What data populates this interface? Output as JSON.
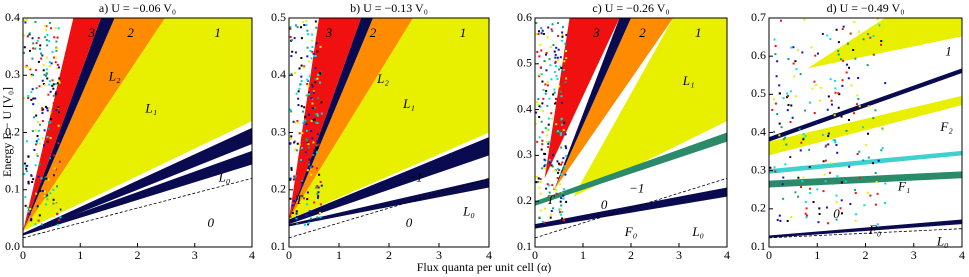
{
  "x_label": "Flux quanta per unit cell (α)",
  "y_label": "Energy E − U [V₀]",
  "chart_data": [
    {
      "type": "spectrum",
      "title": "a) U = −0.06 V₀",
      "xlim": [
        0,
        4
      ],
      "xticks": [
        0,
        1,
        2,
        3,
        4
      ],
      "ylim": [
        0,
        0.4
      ],
      "yticks": [
        {
          "value": 0,
          "label": "0.0"
        },
        0.1,
        0.2,
        0.3,
        0.4
      ],
      "annotations": [
        "3",
        "2",
        "1",
        "L₂",
        "L₁",
        "L₀",
        "0"
      ]
    },
    {
      "type": "spectrum",
      "title": "b) U = −0.13 V₀",
      "xlim": [
        0,
        4
      ],
      "xticks": [
        0,
        1,
        2,
        3,
        4
      ],
      "ylim": [
        0.1,
        0.5
      ],
      "yticks": [
        0.1,
        0.2,
        0.3,
        0.4,
        0.5
      ],
      "annotations": [
        "3",
        "2",
        "1",
        "L₂",
        "L₁",
        "−1",
        "T",
        "0",
        "L₀"
      ]
    },
    {
      "type": "spectrum",
      "title": "c) U = −0.26 V₀",
      "xlim": [
        0,
        4
      ],
      "xticks": [
        0,
        1,
        2,
        3,
        4
      ],
      "ylim": [
        0.1,
        0.6
      ],
      "yticks": [
        0.1,
        0.2,
        0.3,
        0.4,
        0.5,
        0.6
      ],
      "annotations": [
        "3",
        "2",
        "1",
        "L₁",
        "0",
        "−1",
        "T",
        "F₀",
        "L₀"
      ]
    },
    {
      "type": "spectrum",
      "title": "d) U = −0.49 V₀",
      "xlim": [
        0,
        4
      ],
      "xticks": [
        0,
        1,
        2,
        3,
        4
      ],
      "ylim": [
        0.1,
        0.7
      ],
      "yticks": [
        0.1,
        0.2,
        0.3,
        0.4,
        0.5,
        0.6,
        0.7
      ],
      "annotations": [
        "1",
        "F₂",
        "F₁",
        "0",
        "F₀",
        "L₀"
      ]
    }
  ]
}
